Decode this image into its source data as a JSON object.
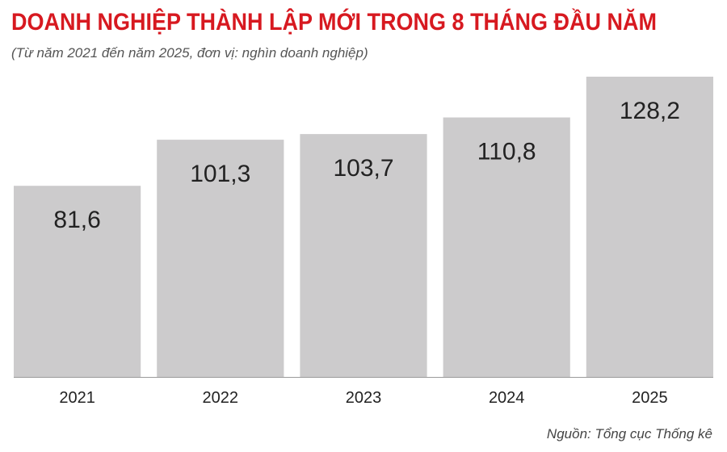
{
  "header": {
    "title": "DOANH NGHIỆP THÀNH LẬP MỚI TRONG 8 THÁNG ĐẦU NĂM",
    "subtitle": "(Từ năm 2021 đến năm 2025, đơn vị: nghìn doanh nghiệp)"
  },
  "footer": {
    "source": "Nguồn: Tổng cục Thống kê"
  },
  "colors": {
    "title": "#d71920",
    "bar": "#cccbcc",
    "axis": "#9a9a9a",
    "text": "#222222"
  },
  "chart_data": {
    "type": "bar",
    "categories": [
      "2021",
      "2022",
      "2023",
      "2024",
      "2025"
    ],
    "values": [
      81.6,
      101.3,
      103.7,
      110.8,
      128.2
    ],
    "value_labels": [
      "81,6",
      "101,3",
      "103,7",
      "110,8",
      "128,2"
    ],
    "title": "DOANH NGHIỆP THÀNH LẬP MỚI TRONG 8 THÁNG ĐẦU NĂM",
    "subtitle": "(Từ năm 2021 đến năm 2025, đơn vị: nghìn doanh nghiệp)",
    "xlabel": "",
    "ylabel": "",
    "ylim": [
      0,
      128.2
    ],
    "grid": false,
    "legend": "none"
  }
}
